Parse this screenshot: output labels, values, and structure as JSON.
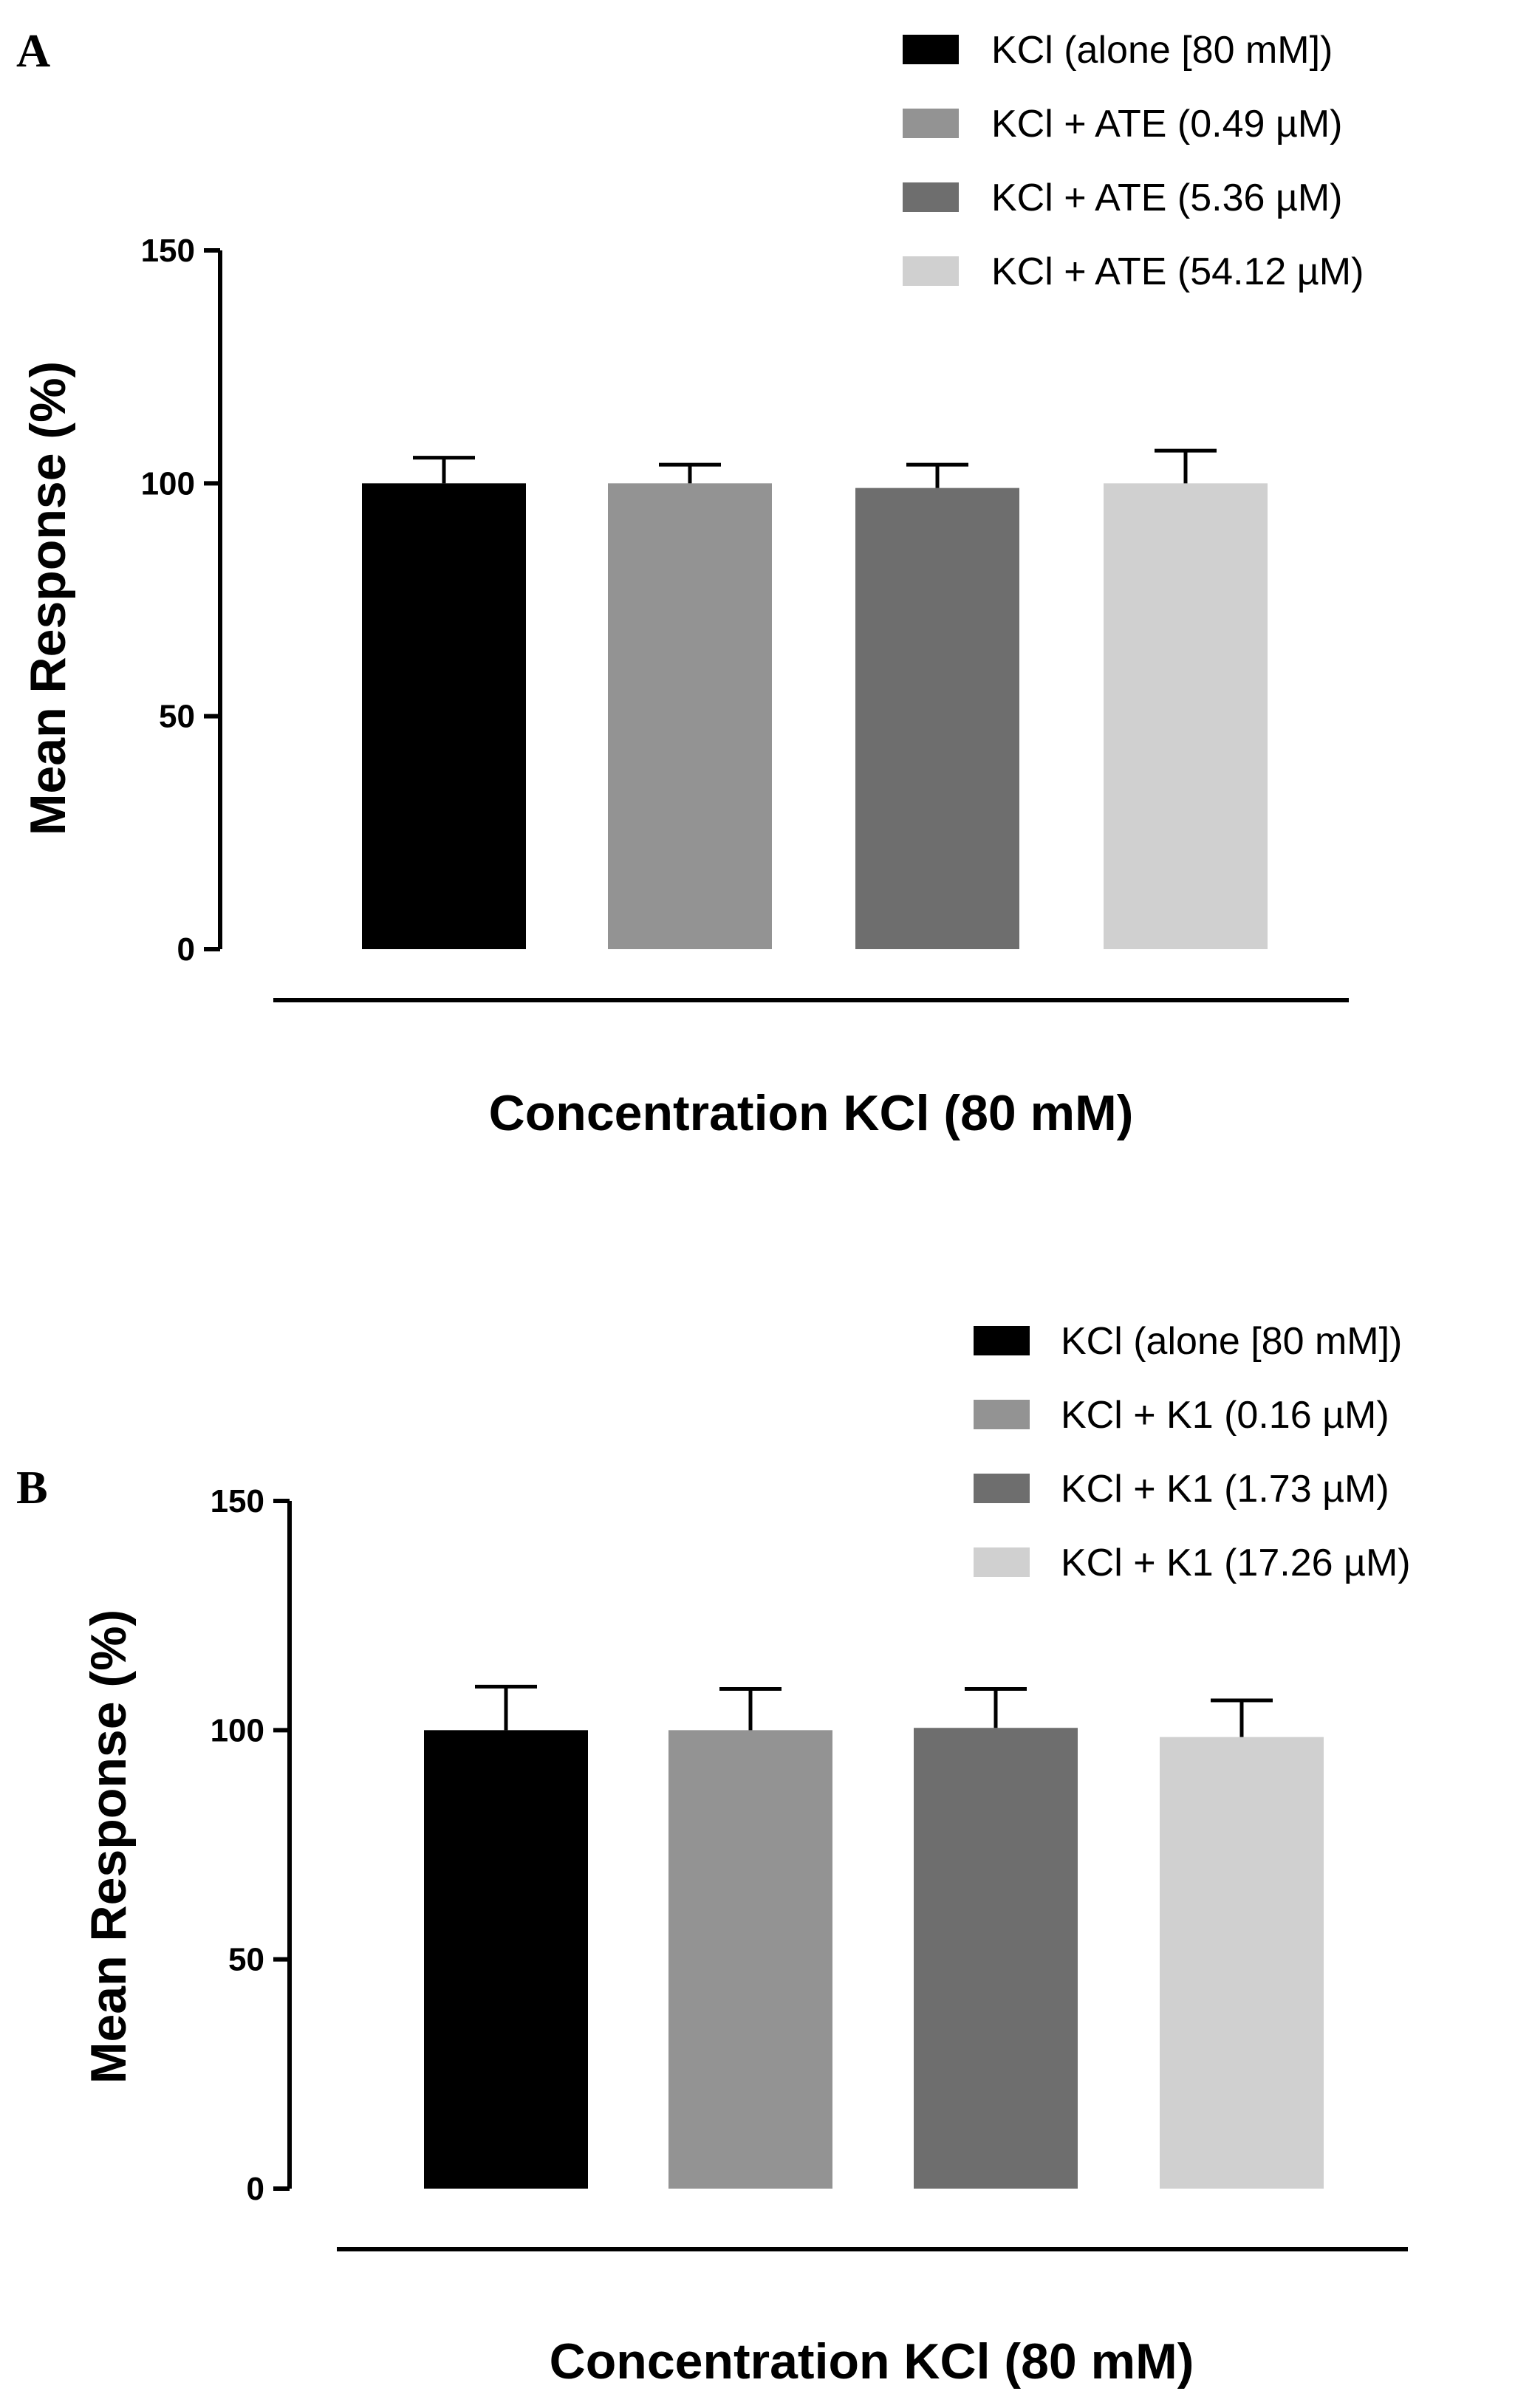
{
  "chart_data": [
    {
      "type": "bar",
      "panel_label": "A",
      "ylabel": "Mean Response (%)",
      "xlabel": "Concentration KCl (80 mM)",
      "ylim": [
        0,
        150
      ],
      "yticks": [
        0,
        50,
        100,
        150
      ],
      "ytick_labels": [
        "0",
        "50",
        "100",
        "150"
      ],
      "legend_position": "top-right",
      "series": [
        {
          "name": "KCl (alone [80 mM])",
          "value": 100,
          "error": 5.5,
          "color": "#000000"
        },
        {
          "name": "KCl + ATE (0.49 µM)",
          "value": 100,
          "error": 4,
          "color": "#939393"
        },
        {
          "name": "KCl + ATE (5.36 µM)",
          "value": 99,
          "error": 5,
          "color": "#6e6e6e"
        },
        {
          "name": "KCl + ATE (54.12 µM)",
          "value": 100,
          "error": 7,
          "color": "#d0d0d0"
        }
      ]
    },
    {
      "type": "bar",
      "panel_label": "B",
      "ylabel": "Mean Response (%)",
      "xlabel": "Concentration KCl (80 mM)",
      "ylim": [
        0,
        150
      ],
      "yticks": [
        0,
        50,
        100,
        150
      ],
      "ytick_labels": [
        "0",
        "50",
        "100",
        "150"
      ],
      "legend_position": "top-right",
      "series": [
        {
          "name": "KCl (alone [80 mM])",
          "value": 100,
          "error": 9.5,
          "color": "#000000"
        },
        {
          "name": "KCl + K1 (0.16 µM)",
          "value": 100,
          "error": 9,
          "color": "#939393"
        },
        {
          "name": "KCl + K1 (1.73 µM)",
          "value": 100.5,
          "error": 8.5,
          "color": "#6e6e6e"
        },
        {
          "name": "KCl + K1 (17.26 µM)",
          "value": 98.5,
          "error": 8,
          "color": "#d0d0d0"
        }
      ]
    }
  ]
}
